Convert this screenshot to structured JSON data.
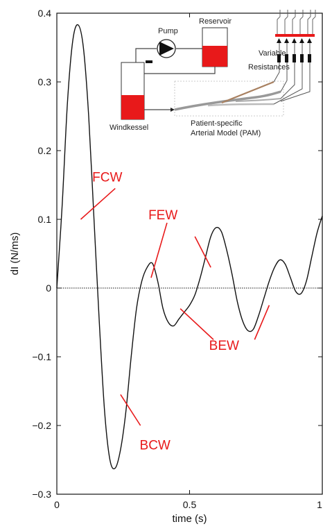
{
  "chart_data": {
    "type": "line",
    "title": "",
    "xlabel": "time (s)",
    "ylabel": "dI (N/ms)",
    "xlim": [
      0,
      1
    ],
    "ylim": [
      -0.3,
      0.4
    ],
    "xticks": [
      0,
      0.5,
      1
    ],
    "xtick_labels": [
      "0",
      "0.5",
      "1"
    ],
    "yticks": [
      -0.3,
      -0.2,
      -0.1,
      0,
      0.1,
      0.2,
      0.3,
      0.4
    ],
    "ytick_labels": [
      "−0.3",
      "−0.2",
      "−0.1",
      "0",
      "0.1",
      "0.2",
      "0.3",
      "0.4"
    ],
    "grid": false,
    "zero_line": "dotted",
    "series": [
      {
        "name": "",
        "color": "#111111",
        "x": [
          0,
          0.02,
          0.04,
          0.06,
          0.08,
          0.1,
          0.12,
          0.14,
          0.16,
          0.18,
          0.2,
          0.22,
          0.24,
          0.26,
          0.28,
          0.3,
          0.32,
          0.34,
          0.36,
          0.38,
          0.4,
          0.42,
          0.44,
          0.46,
          0.48,
          0.5,
          0.52,
          0.54,
          0.56,
          0.58,
          0.6,
          0.62,
          0.64,
          0.66,
          0.68,
          0.7,
          0.72,
          0.74,
          0.76,
          0.78,
          0.8,
          0.82,
          0.84,
          0.86,
          0.88,
          0.9,
          0.92,
          0.94,
          0.96,
          0.98,
          1.0
        ],
        "y": [
          0,
          0.12,
          0.27,
          0.36,
          0.383,
          0.35,
          0.25,
          0.1,
          -0.05,
          -0.18,
          -0.25,
          -0.262,
          -0.235,
          -0.18,
          -0.1,
          -0.03,
          0.01,
          0.03,
          0.036,
          0.01,
          -0.03,
          -0.05,
          -0.055,
          -0.045,
          -0.035,
          -0.025,
          -0.01,
          0.015,
          0.045,
          0.075,
          0.088,
          0.082,
          0.055,
          0.02,
          -0.02,
          -0.048,
          -0.062,
          -0.06,
          -0.04,
          -0.015,
          0.01,
          0.03,
          0.041,
          0.035,
          0.015,
          -0.005,
          -0.008,
          0.01,
          0.045,
          0.08,
          0.105
        ]
      }
    ],
    "annotations": [
      {
        "text": "FCW",
        "x": 0.19,
        "y": 0.155
      },
      {
        "text": "FEW",
        "x": 0.4,
        "y": 0.1
      },
      {
        "text": "BEW",
        "x": 0.63,
        "y": -0.09
      },
      {
        "text": "BCW",
        "x": 0.37,
        "y": -0.235
      }
    ],
    "annotation_lines": [
      {
        "from": [
          0.09,
          0.1
        ],
        "to": [
          0.22,
          0.145
        ]
      },
      {
        "from": [
          0.355,
          0.015
        ],
        "to": [
          0.415,
          0.095
        ]
      },
      {
        "from": [
          0.52,
          0.075
        ],
        "to": [
          0.58,
          0.03
        ]
      },
      {
        "from": [
          0.465,
          -0.03
        ],
        "to": [
          0.59,
          -0.075
        ]
      },
      {
        "from": [
          0.745,
          -0.075
        ],
        "to": [
          0.8,
          -0.025
        ]
      },
      {
        "from": [
          0.24,
          -0.155
        ],
        "to": [
          0.315,
          -0.2
        ]
      }
    ]
  },
  "inset": {
    "labels": {
      "pump": "Pump",
      "reservoir": "Reservoir",
      "windkessel": "Windkessel",
      "resistances_line1": "Variable",
      "resistances_line2": "Resistances",
      "pam_line1": "Patient-specific",
      "pam_line2": "Arterial Model (PAM)"
    },
    "colors": {
      "fluid": "#e8191a",
      "tubing": "#444444"
    }
  }
}
